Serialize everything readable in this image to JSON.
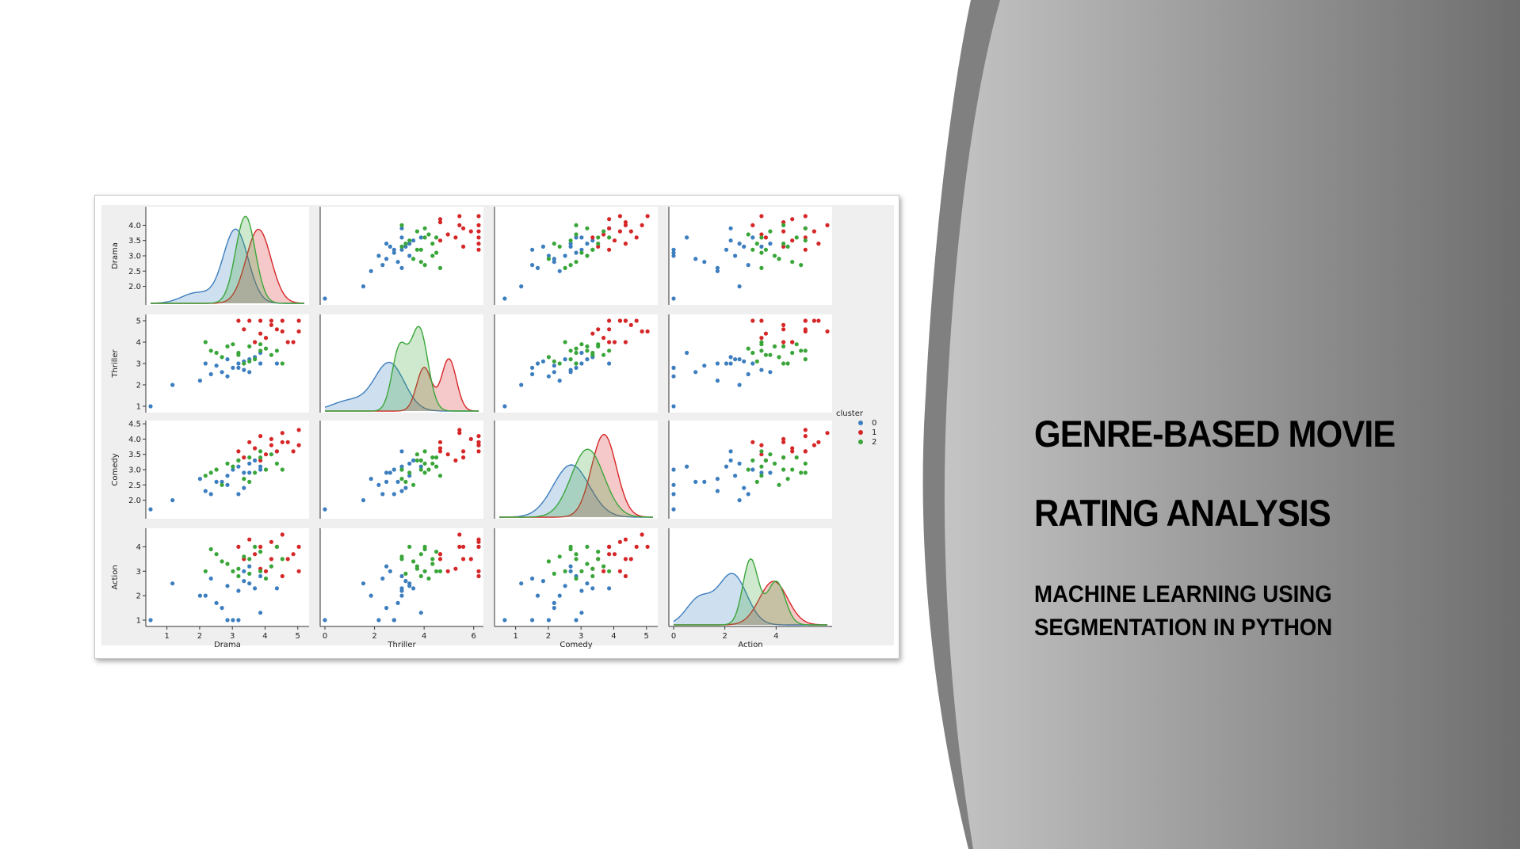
{
  "slide": {
    "title_line_1": "GENRE-BASED MOVIE",
    "title_line_2": "RATING ANALYSIS",
    "subtitle_line_1": "MACHINE LEARNING USING",
    "subtitle_line_2": "SEGMENTATION IN PYTHON",
    "colors": {
      "panel_dark": "#6e6e6e",
      "panel_light": "#c4c4c4",
      "frame": "#c9c9c9"
    }
  },
  "chart_data": {
    "type": "scatter",
    "variables": [
      "Drama",
      "Thriller",
      "Comedy",
      "Action"
    ],
    "ranges": {
      "Drama": [
        1.6,
        4.4
      ],
      "Thriller": [
        1,
        5
      ],
      "Comedy": [
        1.6,
        4.4
      ],
      "Action": [
        1,
        4.5
      ]
    },
    "kde_x_ranges": {
      "Drama": [
        0.5,
        5.2
      ],
      "Thriller": [
        0,
        6.2
      ],
      "Comedy": [
        0.5,
        5.2
      ],
      "Action": [
        0,
        6
      ]
    },
    "ticks": {
      "Drama": [
        2.0,
        2.5,
        3.0,
        3.5,
        4.0
      ],
      "Thriller": [
        1,
        2,
        3,
        4,
        5
      ],
      "Comedy": [
        2.0,
        2.5,
        3.0,
        3.5,
        4.0,
        4.5
      ],
      "Action": [
        1,
        2,
        3,
        4
      ]
    },
    "tick_labels": {
      "Drama": [
        "2.0",
        "2.5",
        "3.0",
        "3.5",
        "4.0"
      ],
      "Thriller": [
        "1",
        "2",
        "3",
        "4",
        "5"
      ],
      "Comedy": [
        "2.0",
        "2.5",
        "3.0",
        "3.5",
        "4.0",
        "4.5"
      ],
      "Action": [
        "1",
        "2",
        "3",
        "4"
      ]
    },
    "diag_ticks": {
      "Drama": [
        1,
        2,
        3,
        4,
        5
      ],
      "Thriller": [
        0,
        2,
        4,
        6
      ],
      "Comedy": [
        1,
        2,
        3,
        4,
        5
      ],
      "Action": [
        0,
        2,
        4
      ]
    },
    "diag_tick_labels": {
      "Drama": [
        "1",
        "2",
        "3",
        "4",
        "5"
      ],
      "Thriller": [
        "0",
        "2",
        "4",
        "6"
      ],
      "Comedy": [
        "1",
        "2",
        "3",
        "4",
        "5"
      ],
      "Action": [
        "0",
        "2",
        "4"
      ]
    },
    "legend": {
      "title": "cluster",
      "labels": [
        "0",
        "1",
        "2"
      ],
      "placement": "right"
    },
    "series": [
      {
        "cluster": "0",
        "color": "#3d7ebf",
        "points": [
          [
            1.6,
            1.0,
            1.7,
            1.0
          ],
          [
            2.0,
            2.0,
            2.0,
            2.5
          ],
          [
            2.6,
            3.0,
            2.3,
            2.0
          ],
          [
            2.9,
            2.6,
            2.6,
            1.5
          ],
          [
            3.0,
            3.2,
            2.8,
            2.4
          ],
          [
            3.1,
            2.8,
            3.0,
            1.0
          ],
          [
            2.7,
            2.5,
            2.2,
            2.7
          ],
          [
            3.2,
            3.0,
            3.1,
            2.2
          ],
          [
            3.3,
            2.7,
            2.9,
            3.0
          ],
          [
            2.8,
            2.9,
            2.6,
            1.7
          ],
          [
            3.4,
            3.2,
            3.2,
            2.5
          ],
          [
            3.5,
            3.3,
            3.3,
            2.3
          ],
          [
            3.0,
            2.4,
            2.5,
            1.0
          ],
          [
            3.3,
            3.1,
            2.4,
            2.6
          ],
          [
            2.5,
            2.2,
            2.7,
            2.0
          ],
          [
            3.6,
            3.0,
            3.0,
            2.8
          ],
          [
            3.2,
            2.8,
            2.2,
            1.0
          ],
          [
            3.4,
            2.6,
            2.9,
            3.2
          ],
          [
            3.6,
            3.5,
            3.1,
            1.3
          ],
          [
            3.9,
            3.0,
            3.6,
            2.3
          ]
        ]
      },
      {
        "cluster": "1",
        "color": "#d62728",
        "points": [
          [
            3.2,
            5.0,
            3.6,
            4.0
          ],
          [
            3.4,
            5.0,
            3.9,
            4.3
          ],
          [
            3.6,
            5.0,
            4.1,
            4.0
          ],
          [
            3.8,
            4.8,
            4.0,
            3.5
          ],
          [
            4.0,
            4.5,
            4.2,
            4.5
          ],
          [
            4.3,
            4.5,
            4.3,
            4.0
          ],
          [
            4.3,
            5.0,
            3.8,
            3.0
          ],
          [
            4.1,
            4.0,
            3.9,
            3.5
          ],
          [
            3.9,
            4.6,
            3.6,
            4.0
          ],
          [
            3.7,
            4.2,
            3.5,
            3.0
          ],
          [
            3.5,
            4.0,
            3.7,
            3.7
          ],
          [
            3.3,
            4.6,
            3.4,
            3.5
          ],
          [
            3.8,
            5.0,
            3.8,
            4.2
          ],
          [
            4.2,
            4.0,
            3.6,
            3.7
          ],
          [
            3.6,
            4.4,
            3.3,
            3.1
          ],
          [
            4.0,
            5.0,
            3.9,
            2.8
          ]
        ]
      },
      {
        "cluster": "2",
        "color": "#3aa63a",
        "points": [
          [
            2.6,
            4.0,
            2.8,
            3.0
          ],
          [
            2.8,
            3.5,
            3.0,
            3.7
          ],
          [
            3.0,
            3.8,
            3.2,
            3.3
          ],
          [
            3.2,
            3.5,
            3.3,
            2.8
          ],
          [
            3.4,
            3.8,
            3.4,
            3.5
          ],
          [
            3.6,
            3.6,
            3.6,
            3.0
          ],
          [
            3.8,
            3.4,
            3.5,
            3.2
          ],
          [
            3.3,
            3.0,
            2.7,
            3.6
          ],
          [
            3.5,
            3.2,
            2.9,
            4.0
          ],
          [
            3.7,
            3.7,
            3.0,
            2.7
          ],
          [
            3.1,
            3.9,
            3.1,
            3.0
          ],
          [
            3.9,
            3.6,
            3.2,
            4.0
          ],
          [
            2.9,
            3.3,
            2.5,
            3.4
          ],
          [
            3.4,
            3.1,
            2.6,
            2.9
          ],
          [
            3.6,
            3.9,
            3.4,
            3.8
          ],
          [
            3.2,
            3.4,
            3.3,
            3.1
          ],
          [
            4.0,
            3.0,
            3.0,
            3.5
          ],
          [
            2.7,
            3.6,
            2.9,
            3.9
          ]
        ]
      }
    ],
    "kde": {
      "Drama": [
        {
          "cluster": "0",
          "components": [
            [
              1.9,
              0.45,
              0.12
            ],
            [
              3.1,
              0.38,
              0.85
            ]
          ]
        },
        {
          "cluster": "1",
          "components": [
            [
              3.8,
              0.38,
              0.85
            ]
          ]
        },
        {
          "cluster": "2",
          "components": [
            [
              3.4,
              0.3,
              1.0
            ]
          ]
        }
      ],
      "Thriller": [
        {
          "cluster": "0",
          "components": [
            [
              1.0,
              0.7,
              0.12
            ],
            [
              2.6,
              0.6,
              0.55
            ]
          ]
        },
        {
          "cluster": "1",
          "components": [
            [
              4.0,
              0.3,
              0.5
            ],
            [
              5.0,
              0.3,
              0.6
            ]
          ]
        },
        {
          "cluster": "2",
          "components": [
            [
              3.0,
              0.3,
              0.7
            ],
            [
              3.8,
              0.35,
              0.95
            ]
          ]
        }
      ],
      "Comedy": [
        {
          "cluster": "0",
          "components": [
            [
              2.7,
              0.55,
              0.6
            ]
          ]
        },
        {
          "cluster": "1",
          "components": [
            [
              3.7,
              0.38,
              0.95
            ]
          ]
        },
        {
          "cluster": "2",
          "components": [
            [
              3.2,
              0.5,
              0.78
            ]
          ]
        }
      ],
      "Action": [
        {
          "cluster": "0",
          "components": [
            [
              1.0,
              0.5,
              0.3
            ],
            [
              2.3,
              0.55,
              0.58
            ]
          ]
        },
        {
          "cluster": "1",
          "components": [
            [
              3.9,
              0.55,
              0.5
            ]
          ]
        },
        {
          "cluster": "2",
          "components": [
            [
              3.0,
              0.3,
              0.75
            ],
            [
              4.0,
              0.35,
              0.5
            ]
          ]
        }
      ]
    }
  }
}
